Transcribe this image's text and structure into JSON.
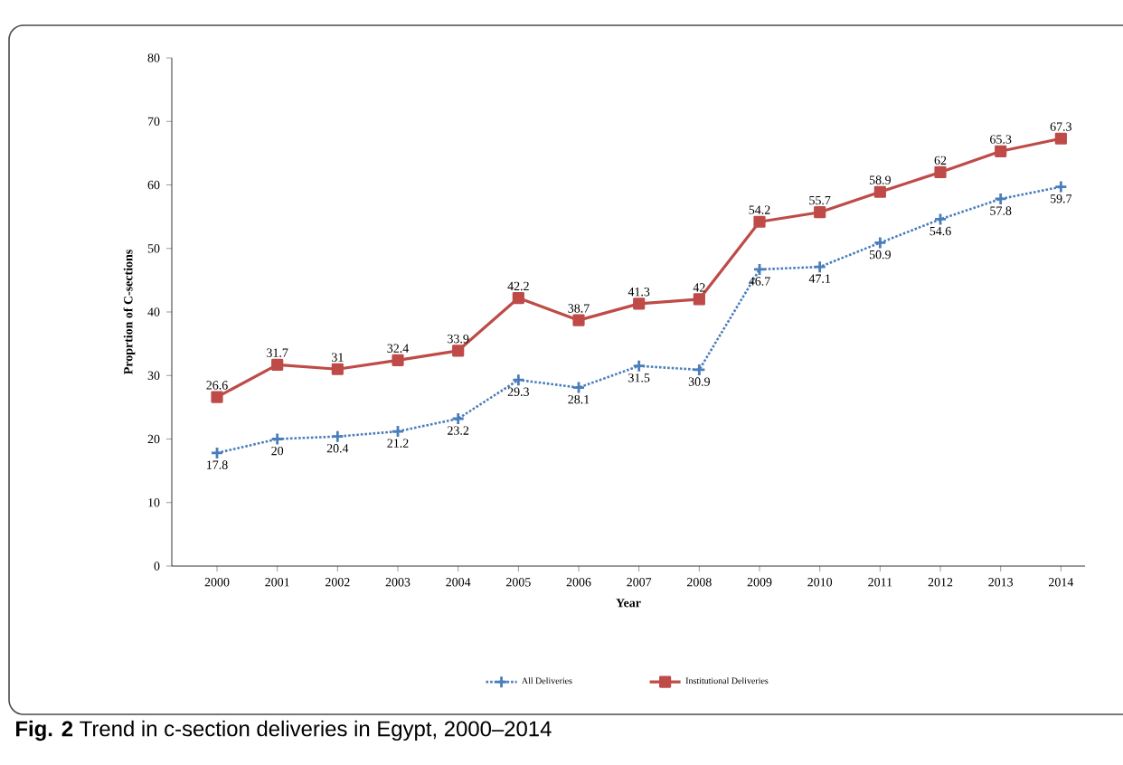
{
  "chart_data": {
    "type": "line",
    "xlabel": "Year",
    "ylabel": "Proprtion of C-sections",
    "categories": [
      "2000",
      "2001",
      "2002",
      "2003",
      "2004",
      "2005",
      "2006",
      "2007",
      "2008",
      "2009",
      "2010",
      "2011",
      "2012",
      "2013",
      "2014"
    ],
    "series": [
      {
        "name": "All Deliveries",
        "color": "#4a7ebb",
        "marker": "cross",
        "line_style": "dotted",
        "values": [
          17.8,
          20,
          20.4,
          21.2,
          23.2,
          29.3,
          28.1,
          31.5,
          30.9,
          46.7,
          47.1,
          50.9,
          54.6,
          57.8,
          59.7
        ]
      },
      {
        "name": "Institutional Deliveries",
        "color": "#be4b48",
        "marker": "square",
        "line_style": "solid",
        "values": [
          26.6,
          31.7,
          31,
          32.4,
          33.9,
          42.2,
          38.7,
          41.3,
          42,
          54.2,
          55.7,
          58.9,
          62,
          65.3,
          67.3
        ]
      }
    ],
    "ylim": [
      0,
      80
    ],
    "yticks": [
      0,
      10,
      20,
      30,
      40,
      50,
      60,
      70,
      80
    ],
    "grid": false,
    "legend": "bottom",
    "data_labels": true,
    "annotations": [
      "**Fig. 2** Trend in c-section deliveries in Egypt, 2000–2014"
    ]
  }
}
